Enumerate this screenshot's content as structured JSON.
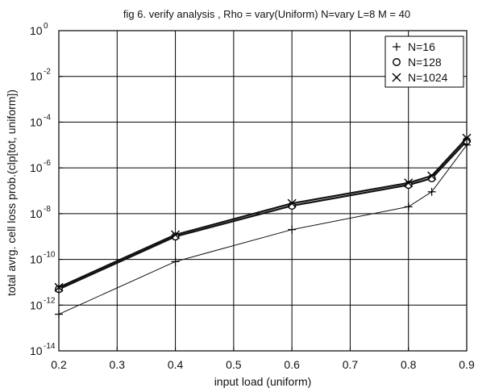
{
  "chart_data": {
    "type": "line",
    "title": "fig 6. verify analysis , Rho = vary(Uniform)  N=vary L=8 M = 40",
    "xlabel": "input load (uniform)",
    "ylabel": "total avrg. cell loss prob.(clp[tot, uniform])",
    "xlim": [
      0.2,
      0.9
    ],
    "ylim": [
      1e-14,
      1
    ],
    "y_scale": "log",
    "grid": true,
    "legend_position": "top-right",
    "x_ticks": [
      0.2,
      0.3,
      0.4,
      0.5,
      0.6,
      0.7,
      0.8,
      0.9
    ],
    "x_tick_labels": [
      "0.2",
      "0.3",
      "0.4",
      "0.5",
      "0.6",
      "0.7",
      "0.8",
      "0.9"
    ],
    "y_ticks": [
      {
        "value": 1,
        "base": "10",
        "exp": "0"
      },
      {
        "value": 0.01,
        "base": "10",
        "exp": "-2"
      },
      {
        "value": 0.0001,
        "base": "10",
        "exp": "-4"
      },
      {
        "value": 1e-06,
        "base": "10",
        "exp": "-6"
      },
      {
        "value": 1e-08,
        "base": "10",
        "exp": "-8"
      },
      {
        "value": 1e-10,
        "base": "10",
        "exp": "-10"
      },
      {
        "value": 1e-12,
        "base": "10",
        "exp": "-12"
      },
      {
        "value": 1e-14,
        "base": "10",
        "exp": "-14"
      }
    ],
    "series": [
      {
        "name": "N=16",
        "marker": "plus",
        "line_width": 1.0,
        "points": [
          [
            0.2,
            4e-13
          ],
          [
            0.4,
            8e-11
          ],
          [
            0.6,
            2e-09
          ],
          [
            0.8,
            2e-08
          ],
          [
            0.84,
            9e-08
          ],
          [
            0.9,
            1e-05
          ]
        ]
      },
      {
        "name": "N=128",
        "marker": "circle",
        "line_width": 2.2,
        "points": [
          [
            0.2,
            5e-12
          ],
          [
            0.4,
            1e-09
          ],
          [
            0.6,
            2.2e-08
          ],
          [
            0.8,
            1.8e-07
          ],
          [
            0.84,
            3.5e-07
          ],
          [
            0.9,
            1.5e-05
          ]
        ]
      },
      {
        "name": "N=1024",
        "marker": "x",
        "line_width": 2.2,
        "points": [
          [
            0.2,
            6e-12
          ],
          [
            0.4,
            1.2e-09
          ],
          [
            0.6,
            2.8e-08
          ],
          [
            0.8,
            2.2e-07
          ],
          [
            0.84,
            4.5e-07
          ],
          [
            0.9,
            2e-05
          ]
        ]
      }
    ]
  }
}
